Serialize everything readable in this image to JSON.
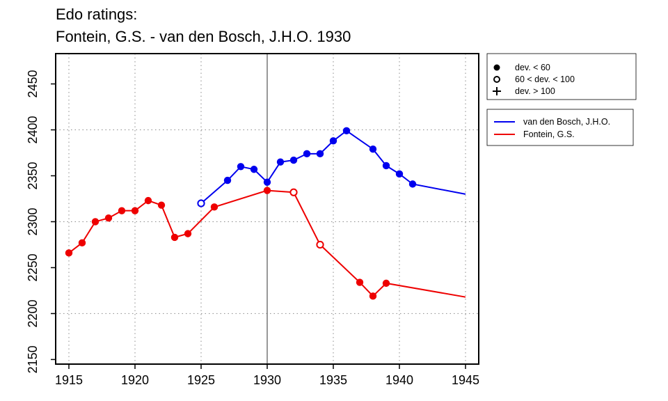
{
  "chart_data": {
    "type": "line",
    "title_line1": "Edo ratings:",
    "title_line2": "Fontein, G.S. - van den Bosch, J.H.O. 1930",
    "xlabel": "",
    "ylabel": "",
    "xlim": [
      1914,
      1946
    ],
    "ylim": [
      2145,
      2483
    ],
    "x_ticks": [
      1915,
      1920,
      1925,
      1930,
      1935,
      1940,
      1945
    ],
    "y_ticks": [
      2150,
      2200,
      2250,
      2300,
      2350,
      2400,
      2450
    ],
    "grid_x": [
      1915,
      1920,
      1925,
      1935,
      1940,
      1945
    ],
    "grid_y": [
      2200,
      2300,
      2400
    ],
    "vertical_line_x": 1930,
    "deviation_legend": [
      {
        "label": "dev. < 60",
        "marker": "filled-circle"
      },
      {
        "label": "60 < dev. < 100",
        "marker": "open-circle"
      },
      {
        "label": "dev. > 100",
        "marker": "plus"
      }
    ],
    "legend_placement": "right, outside plot",
    "series": [
      {
        "name": "van den Bosch, J.H.O.",
        "color": "#0000ee",
        "points": [
          {
            "x": 1925,
            "y": 2320,
            "m": "open"
          },
          {
            "x": 1927,
            "y": 2345,
            "m": "filled"
          },
          {
            "x": 1928,
            "y": 2360,
            "m": "filled"
          },
          {
            "x": 1929,
            "y": 2357,
            "m": "filled"
          },
          {
            "x": 1930,
            "y": 2343,
            "m": "filled"
          },
          {
            "x": 1931,
            "y": 2365,
            "m": "filled"
          },
          {
            "x": 1932,
            "y": 2367,
            "m": "filled"
          },
          {
            "x": 1933,
            "y": 2374,
            "m": "filled"
          },
          {
            "x": 1934,
            "y": 2374,
            "m": "filled"
          },
          {
            "x": 1935,
            "y": 2388,
            "m": "filled"
          },
          {
            "x": 1936,
            "y": 2399,
            "m": "filled"
          },
          {
            "x": 1938,
            "y": 2379,
            "m": "filled"
          },
          {
            "x": 1939,
            "y": 2361,
            "m": "filled"
          },
          {
            "x": 1940,
            "y": 2352,
            "m": "filled"
          },
          {
            "x": 1941,
            "y": 2341,
            "m": "filled"
          },
          {
            "x": 1945,
            "y": 2330,
            "m": "none"
          }
        ]
      },
      {
        "name": "Fontein, G.S.",
        "color": "#ee0000",
        "points": [
          {
            "x": 1915,
            "y": 2266,
            "m": "filled"
          },
          {
            "x": 1916,
            "y": 2277,
            "m": "filled"
          },
          {
            "x": 1917,
            "y": 2300,
            "m": "filled"
          },
          {
            "x": 1918,
            "y": 2304,
            "m": "filled"
          },
          {
            "x": 1919,
            "y": 2312,
            "m": "filled"
          },
          {
            "x": 1920,
            "y": 2312,
            "m": "filled"
          },
          {
            "x": 1921,
            "y": 2323,
            "m": "filled"
          },
          {
            "x": 1922,
            "y": 2318,
            "m": "filled"
          },
          {
            "x": 1923,
            "y": 2283,
            "m": "filled"
          },
          {
            "x": 1924,
            "y": 2287,
            "m": "filled"
          },
          {
            "x": 1926,
            "y": 2316,
            "m": "filled"
          },
          {
            "x": 1930,
            "y": 2334,
            "m": "filled"
          },
          {
            "x": 1932,
            "y": 2332,
            "m": "open"
          },
          {
            "x": 1934,
            "y": 2275,
            "m": "open"
          },
          {
            "x": 1937,
            "y": 2234,
            "m": "filled"
          },
          {
            "x": 1938,
            "y": 2219,
            "m": "filled"
          },
          {
            "x": 1939,
            "y": 2233,
            "m": "filled"
          },
          {
            "x": 1945,
            "y": 2218,
            "m": "none"
          }
        ]
      }
    ]
  }
}
